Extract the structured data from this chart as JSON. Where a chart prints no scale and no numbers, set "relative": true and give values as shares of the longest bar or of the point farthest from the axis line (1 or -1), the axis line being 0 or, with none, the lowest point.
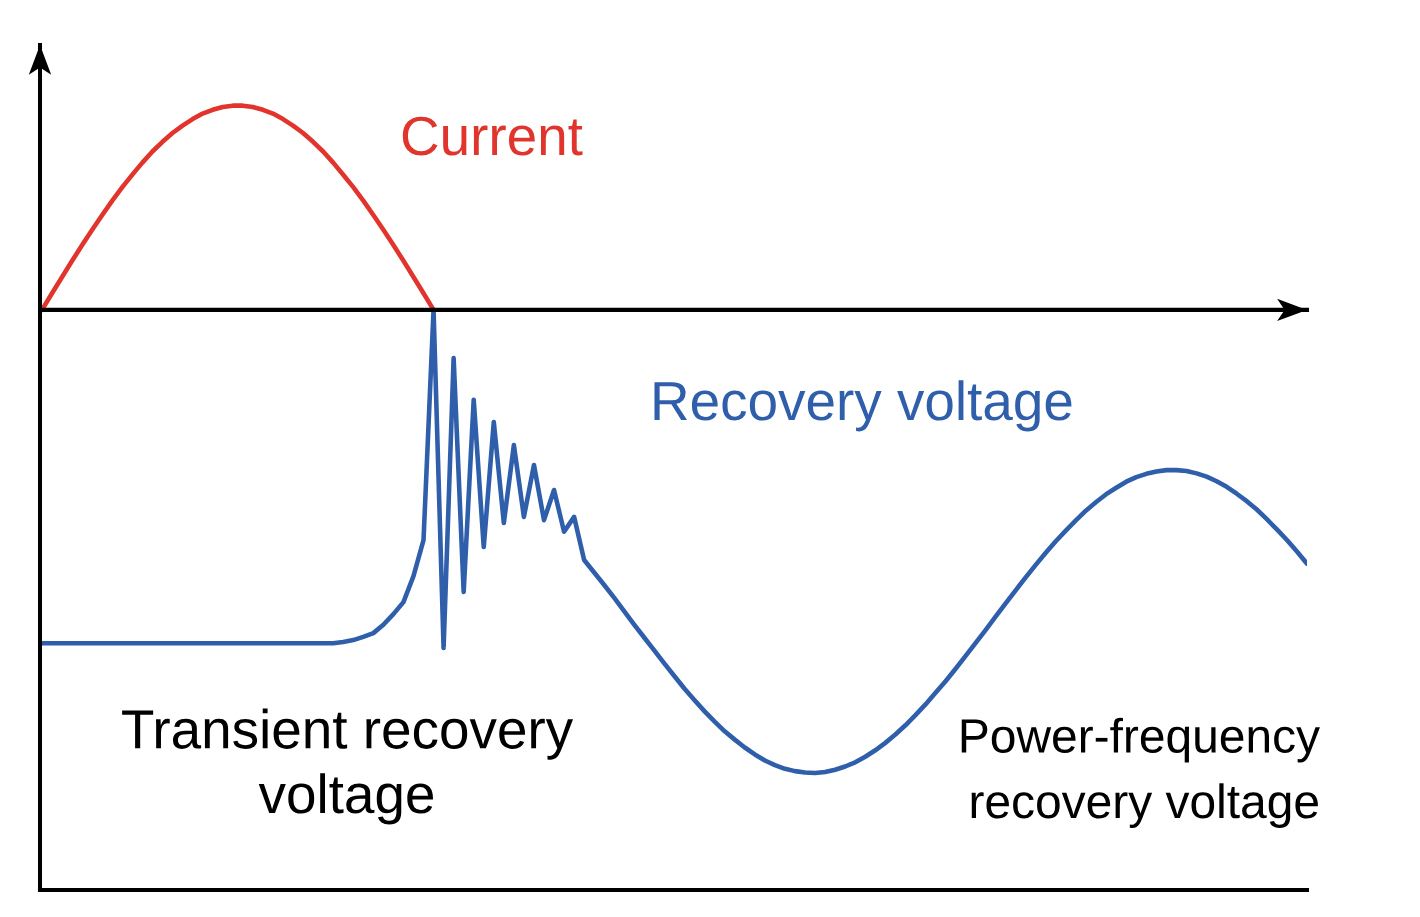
{
  "chart_data": {
    "type": "line",
    "relative": true,
    "categories": [
      null,
      null,
      null,
      null,
      null,
      null,
      null,
      null,
      null,
      null,
      null,
      null,
      null,
      null,
      null,
      null,
      null,
      null,
      null,
      null,
      null,
      null,
      null,
      null,
      null,
      null,
      null,
      null,
      null,
      null,
      null,
      null,
      null,
      null,
      null,
      null,
      null,
      null,
      null,
      null,
      null,
      null,
      null,
      null,
      null,
      null,
      null,
      null,
      null,
      null,
      null,
      null,
      null,
      null,
      null,
      null,
      null,
      null,
      null,
      null,
      null,
      null,
      null,
      null,
      null,
      null,
      null,
      null,
      null,
      null,
      null,
      null,
      null,
      null,
      null,
      null,
      null,
      null,
      null,
      null,
      null,
      null,
      null,
      null,
      null,
      null,
      null,
      null,
      null,
      null,
      null,
      null,
      null,
      null,
      null,
      null,
      null,
      null,
      null,
      null,
      null,
      null,
      null,
      null,
      null,
      null,
      null,
      null,
      null,
      null,
      null,
      null,
      null,
      null,
      null,
      null,
      null,
      null,
      null,
      null,
      null,
      null,
      null,
      null,
      null,
      null,
      null
    ],
    "series": [
      {
        "name": "Current",
        "color": "#e0342d",
        "values": [
          0,
          0.036,
          0.071,
          0.106,
          0.14,
          0.173,
          0.205,
          0.236,
          0.265,
          0.292,
          0.318,
          0.342,
          0.363,
          0.382,
          0.398,
          0.412,
          0.424,
          0.432,
          0.438,
          0.441,
          0.441,
          0.438,
          0.432,
          0.424,
          0.412,
          0.398,
          0.382,
          0.363,
          0.342,
          0.318,
          0.292,
          0.265,
          0.236,
          0.205,
          0.173,
          0.14,
          0.106,
          0.071,
          0.036,
          0,
          null,
          null,
          null,
          null,
          null,
          null,
          null,
          null,
          null,
          null,
          null,
          null,
          null,
          null,
          null,
          null,
          null,
          null,
          null,
          null,
          null,
          null,
          null,
          null,
          null,
          null,
          null,
          null,
          null,
          null,
          null,
          null,
          null,
          null,
          null,
          null,
          null,
          null,
          null,
          null,
          null,
          null,
          null,
          null,
          null,
          null,
          null,
          null,
          null,
          null,
          null,
          null,
          null,
          null,
          null,
          null,
          null,
          null,
          null,
          null,
          null,
          null,
          null,
          null,
          null,
          null,
          null,
          null,
          null,
          null,
          null,
          null,
          null,
          null,
          null,
          null,
          null,
          null,
          null,
          null,
          null,
          null,
          null,
          null,
          null,
          null,
          null
        ]
      },
      {
        "name": "Recovery voltage",
        "color": "#2f5eab",
        "values": [
          -0.72,
          -0.72,
          -0.72,
          -0.72,
          -0.72,
          -0.72,
          -0.72,
          -0.72,
          -0.72,
          -0.72,
          -0.72,
          -0.72,
          -0.72,
          -0.72,
          -0.72,
          -0.72,
          -0.72,
          -0.72,
          -0.72,
          -0.72,
          -0.72,
          -0.72,
          -0.72,
          -0.72,
          -0.72,
          -0.72,
          -0.72,
          -0.72,
          -0.72,
          -0.72,
          -0.717,
          -0.713,
          -0.706,
          -0.698,
          -0.68,
          -0.657,
          -0.631,
          -0.575,
          -0.497,
          0,
          -0.73,
          -0.104,
          -0.609,
          -0.194,
          -0.512,
          -0.242,
          -0.46,
          -0.292,
          -0.447,
          -0.335,
          -0.454,
          -0.389,
          -0.479,
          -0.447,
          -0.54,
          -0.567,
          -0.594,
          -0.622,
          -0.651,
          -0.68,
          -0.708,
          -0.736,
          -0.764,
          -0.791,
          -0.818,
          -0.843,
          -0.867,
          -0.889,
          -0.91,
          -0.928,
          -0.945,
          -0.96,
          -0.973,
          -0.983,
          -0.991,
          -0.996,
          -0.999,
          -1,
          -0.998,
          -0.993,
          -0.986,
          -0.977,
          -0.965,
          -0.951,
          -0.935,
          -0.917,
          -0.897,
          -0.875,
          -0.852,
          -0.827,
          -0.802,
          -0.775,
          -0.747,
          -0.719,
          -0.691,
          -0.662,
          -0.633,
          -0.605,
          -0.577,
          -0.55,
          -0.524,
          -0.499,
          -0.476,
          -0.454,
          -0.433,
          -0.415,
          -0.398,
          -0.384,
          -0.371,
          -0.361,
          -0.354,
          -0.349,
          -0.346,
          -0.346,
          -0.348,
          -0.353,
          -0.36,
          -0.37,
          -0.382,
          -0.397,
          -0.413,
          -0.431,
          -0.452,
          -0.474,
          -0.497,
          -0.522,
          -0.548
        ]
      }
    ],
    "annotations": [
      "Transient recovery\nvoltage",
      "Power-frequency\nrecovery voltage"
    ]
  }
}
